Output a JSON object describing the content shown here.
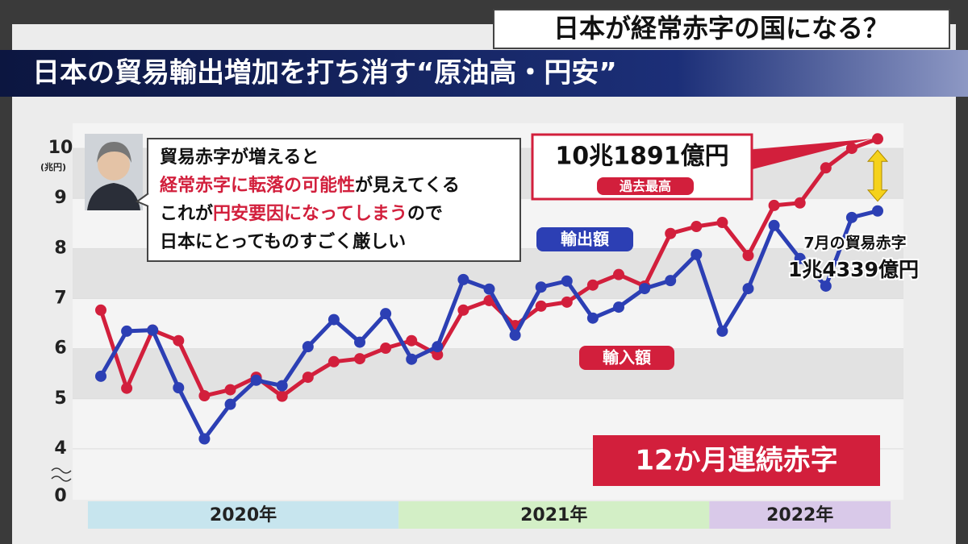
{
  "header": {
    "question": "日本が経常赤字の国になる？",
    "banner": "日本の貿易輸出増加を打ち消す“原油高・円安”"
  },
  "chart_data": {
    "type": "line",
    "y_unit": "(兆円)",
    "ylim": [
      3.5,
      10.5
    ],
    "yticks": [
      4,
      5,
      6,
      7,
      8,
      9,
      10
    ],
    "axis_break_tick": 0,
    "grid_bands": true,
    "year_bands": [
      "2020年",
      "2021年",
      "2022年"
    ],
    "year_band_months": [
      12,
      12,
      7
    ],
    "year_band_colors": [
      "#c7e5ee",
      "#d3efc6",
      "#d9c9e9"
    ],
    "series": [
      {
        "name": "輸出額",
        "color": "#2c3fb4",
        "values": [
          5.45,
          6.35,
          6.37,
          5.22,
          4.2,
          4.89,
          5.37,
          5.26,
          6.04,
          6.58,
          6.13,
          6.7,
          5.79,
          6.04,
          7.38,
          7.19,
          6.27,
          7.23,
          7.35,
          6.61,
          6.83,
          7.2,
          7.36,
          7.88,
          6.35,
          7.2,
          8.46,
          7.8,
          7.25,
          8.62,
          8.75
        ]
      },
      {
        "name": "輸入額",
        "color": "#d21f3c",
        "values": [
          6.77,
          5.21,
          6.37,
          6.16,
          5.06,
          5.18,
          5.43,
          5.05,
          5.43,
          5.74,
          5.8,
          6.01,
          6.16,
          5.88,
          6.77,
          6.96,
          6.46,
          6.85,
          6.93,
          7.27,
          7.48,
          7.25,
          8.3,
          8.44,
          8.52,
          7.86,
          8.86,
          8.91,
          9.61,
          10.0,
          10.19
        ]
      }
    ],
    "annotations": {
      "record_value": "10兆1891億円",
      "record_note": "過去最高",
      "july_deficit_title": "7月の貿易赤字",
      "july_deficit_value": "1兆4339億円",
      "streak": "12か月連続赤字"
    },
    "speech_bubble": [
      [
        {
          "text": "貿易赤字が増えると"
        }
      ],
      [
        {
          "text": "経常赤字に転落の可能性",
          "emphasis": true
        },
        {
          "text": "が見えてくる"
        }
      ],
      [
        {
          "text": "これが"
        },
        {
          "text": "円安要因になってしまう",
          "emphasis": true
        },
        {
          "text": "ので"
        }
      ],
      [
        {
          "text": "日本にとってものすごく厳しい"
        }
      ]
    ]
  }
}
